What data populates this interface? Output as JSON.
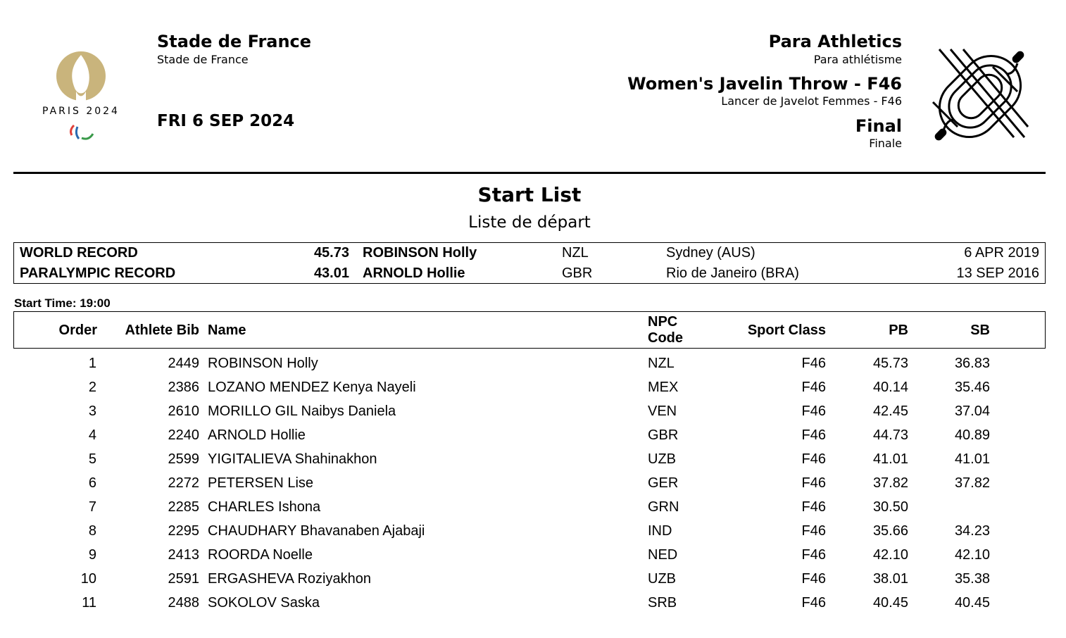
{
  "logo": {
    "text": "PARIS 2024",
    "colors": {
      "gold": "#c9b47c",
      "red": "#e0403a",
      "blue": "#2a6ab0",
      "green": "#3a9a4a"
    }
  },
  "venue": {
    "title": "Stade de France",
    "subtitle": "Stade de France"
  },
  "date": "FRI 6 SEP 2024",
  "sport": {
    "title": "Para Athletics",
    "subtitle": "Para athlétisme"
  },
  "event": {
    "title": "Women's Javelin Throw - F46",
    "subtitle": "Lancer de Javelot Femmes - F46"
  },
  "phase": {
    "title": "Final",
    "subtitle": "Finale"
  },
  "pictogram": "athletics-track-icon",
  "doc": {
    "title": "Start List",
    "subtitle": "Liste de départ"
  },
  "records": [
    {
      "label": "WORLD RECORD",
      "mark": "45.73",
      "name": "ROBINSON Holly",
      "npc": "NZL",
      "place": "Sydney (AUS)",
      "date": "6 APR 2019"
    },
    {
      "label": "PARALYMPIC RECORD",
      "mark": "43.01",
      "name": "ARNOLD Hollie",
      "npc": "GBR",
      "place": "Rio de Janeiro (BRA)",
      "date": "13 SEP 2016"
    }
  ],
  "start_time": "Start Time: 19:00",
  "table": {
    "headers": {
      "order": "Order",
      "bib": "Athlete Bib",
      "name": "Name",
      "npc1": "NPC",
      "npc2": "Code",
      "class": "Sport Class",
      "pb": "PB",
      "sb": "SB"
    },
    "rows": [
      {
        "order": "1",
        "bib": "2449",
        "name": "ROBINSON Holly",
        "npc": "NZL",
        "class": "F46",
        "pb": "45.73",
        "sb": "36.83"
      },
      {
        "order": "2",
        "bib": "2386",
        "name": "LOZANO MENDEZ Kenya Nayeli",
        "npc": "MEX",
        "class": "F46",
        "pb": "40.14",
        "sb": "35.46"
      },
      {
        "order": "3",
        "bib": "2610",
        "name": "MORILLO GIL Naibys Daniela",
        "npc": "VEN",
        "class": "F46",
        "pb": "42.45",
        "sb": "37.04"
      },
      {
        "order": "4",
        "bib": "2240",
        "name": "ARNOLD Hollie",
        "npc": "GBR",
        "class": "F46",
        "pb": "44.73",
        "sb": "40.89"
      },
      {
        "order": "5",
        "bib": "2599",
        "name": "YIGITALIEVA Shahinakhon",
        "npc": "UZB",
        "class": "F46",
        "pb": "41.01",
        "sb": "41.01"
      },
      {
        "order": "6",
        "bib": "2272",
        "name": "PETERSEN Lise",
        "npc": "GER",
        "class": "F46",
        "pb": "37.82",
        "sb": "37.82"
      },
      {
        "order": "7",
        "bib": "2285",
        "name": "CHARLES Ishona",
        "npc": "GRN",
        "class": "F46",
        "pb": "30.50",
        "sb": ""
      },
      {
        "order": "8",
        "bib": "2295",
        "name": "CHAUDHARY Bhavanaben Ajabaji",
        "npc": "IND",
        "class": "F46",
        "pb": "35.66",
        "sb": "34.23"
      },
      {
        "order": "9",
        "bib": "2413",
        "name": "ROORDA Noelle",
        "npc": "NED",
        "class": "F46",
        "pb": "42.10",
        "sb": "42.10"
      },
      {
        "order": "10",
        "bib": "2591",
        "name": "ERGASHEVA Roziyakhon",
        "npc": "UZB",
        "class": "F46",
        "pb": "38.01",
        "sb": "35.38"
      },
      {
        "order": "11",
        "bib": "2488",
        "name": "SOKOLOV Saska",
        "npc": "SRB",
        "class": "F46",
        "pb": "40.45",
        "sb": "40.45"
      }
    ]
  }
}
